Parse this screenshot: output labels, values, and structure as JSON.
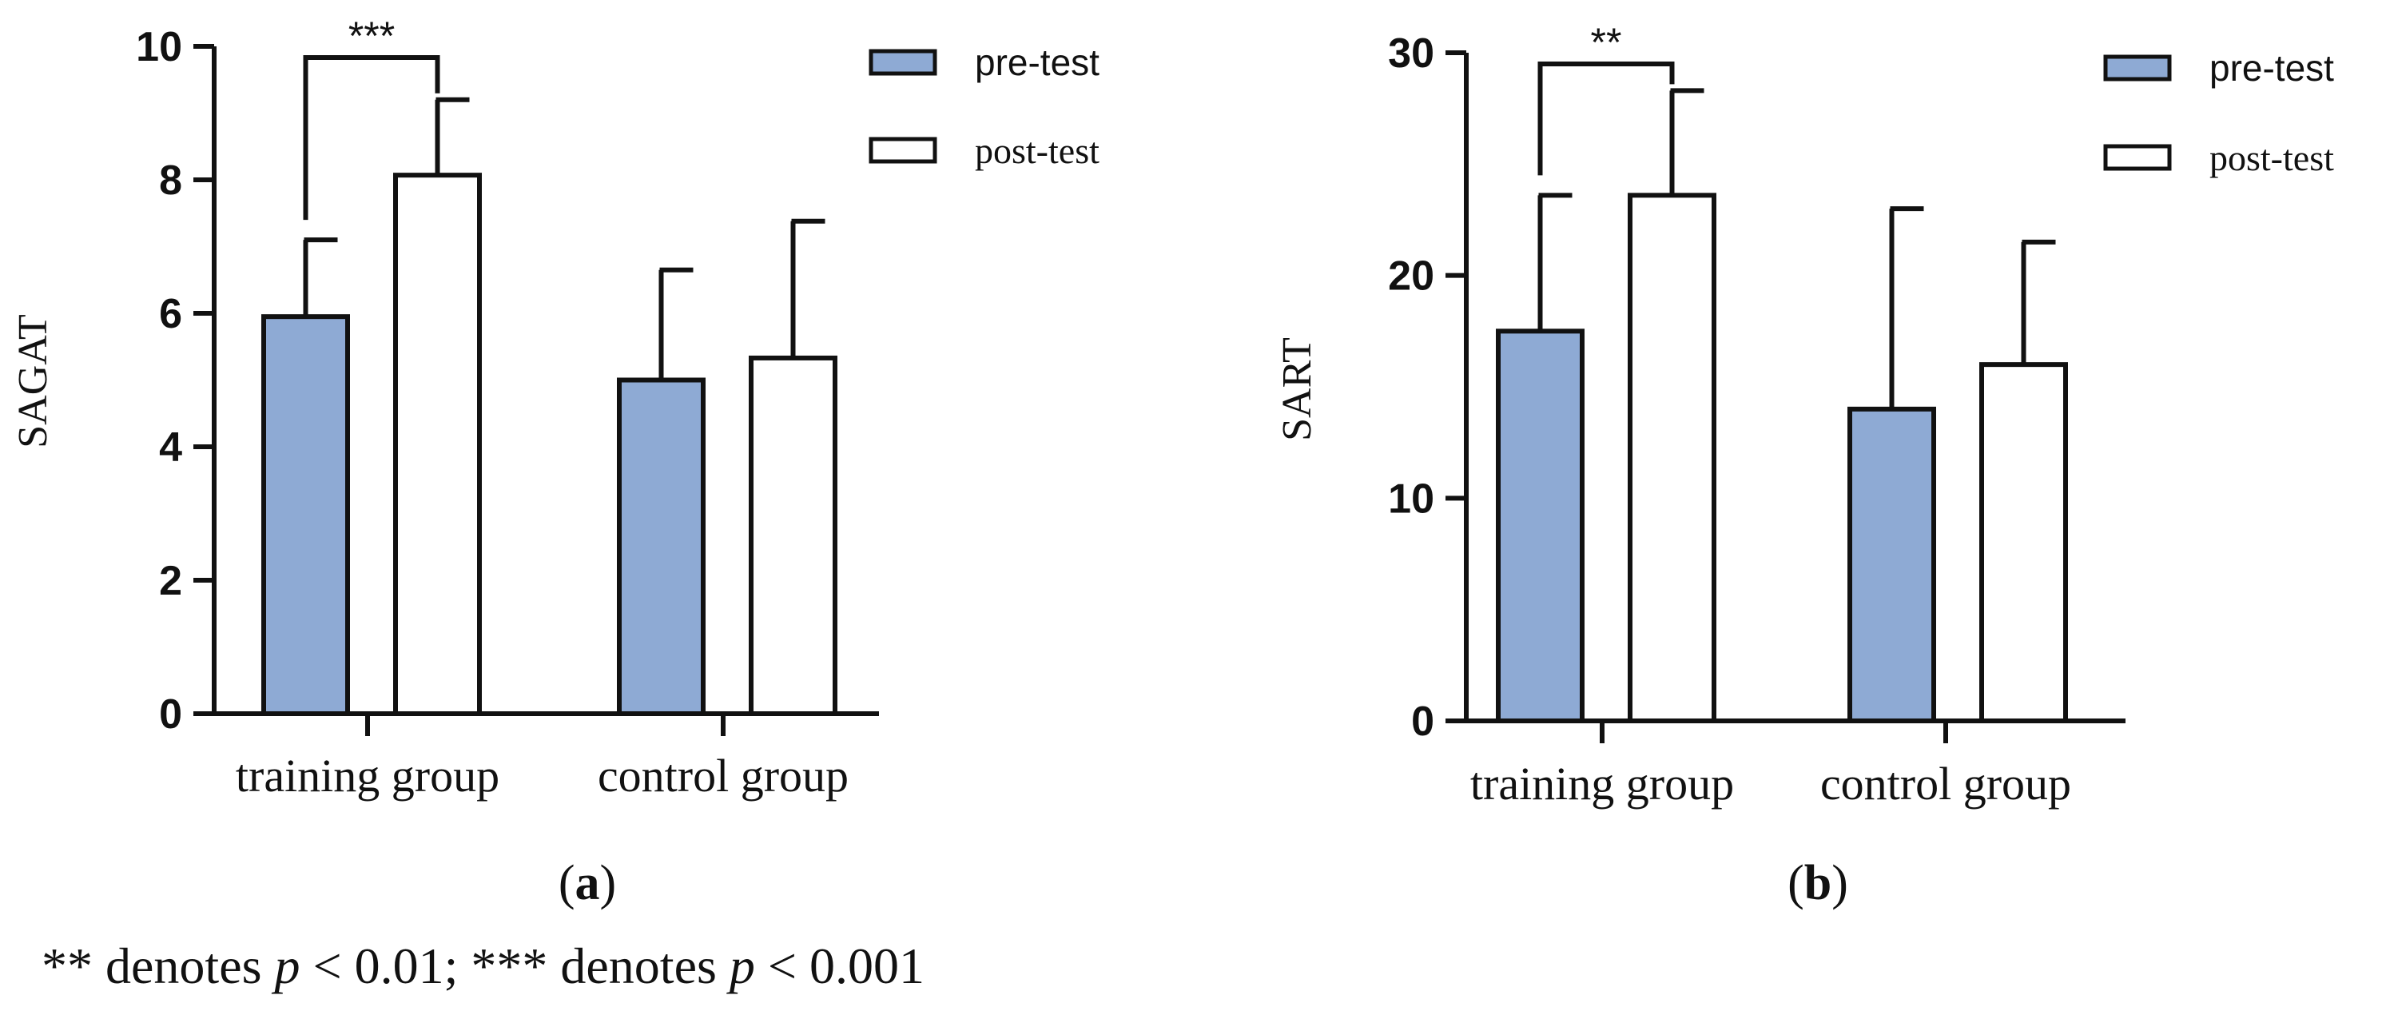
{
  "chart_data": [
    {
      "type": "bar",
      "panel": "a",
      "ylabel": "SAGAT",
      "ylim": [
        0,
        10
      ],
      "yticks": [
        0,
        2,
        4,
        6,
        8,
        10
      ],
      "categories": [
        "training group",
        "control group"
      ],
      "series": [
        {
          "name": "pre-test",
          "values": [
            5.95,
            5.0
          ],
          "errors": [
            1.15,
            1.65
          ]
        },
        {
          "name": "post-test",
          "values": [
            8.07,
            5.33
          ],
          "errors": [
            1.13,
            2.05
          ]
        }
      ],
      "legend_position": "top-right",
      "significance": [
        {
          "category": "training group",
          "label": "***"
        }
      ]
    },
    {
      "type": "bar",
      "panel": "b",
      "ylabel": "SART",
      "ylim": [
        0,
        30
      ],
      "yticks": [
        0,
        10,
        20,
        30
      ],
      "categories": [
        "training group",
        "control group"
      ],
      "series": [
        {
          "name": "pre-test",
          "values": [
            17.5,
            14.0
          ],
          "errors": [
            6.1,
            9.0
          ]
        },
        {
          "name": "post-test",
          "values": [
            23.6,
            16.0
          ],
          "errors": [
            4.7,
            5.5
          ]
        }
      ],
      "legend_position": "top-right",
      "significance": [
        {
          "category": "training group",
          "label": "**"
        }
      ]
    }
  ],
  "colors": {
    "pre_test_fill": "#8eaad4",
    "post_test_fill": "#ffffff",
    "stroke": "#111111"
  },
  "panels": {
    "a_letter": "a",
    "b_letter": "b",
    "open_paren": "(",
    "close_paren": ")"
  },
  "footnote": {
    "part1": "** denotes ",
    "p1": "p",
    "part2": " < 0.01; *** denotes ",
    "p2": "p",
    "part3": " < 0.001"
  }
}
